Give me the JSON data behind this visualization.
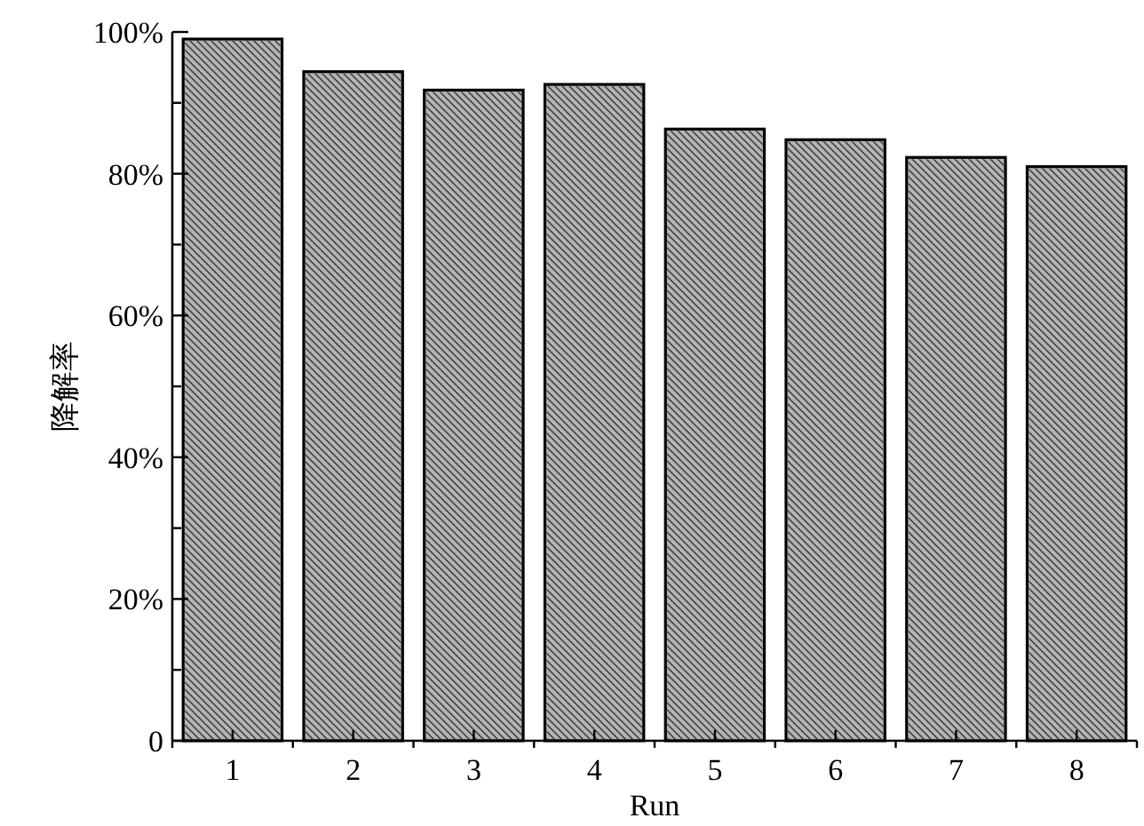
{
  "chart_data": {
    "type": "bar",
    "xlabel": "Run",
    "ylabel": "降解率",
    "categories": [
      "1",
      "2",
      "3",
      "4",
      "5",
      "6",
      "7",
      "8"
    ],
    "values": [
      99.0,
      94.4,
      91.8,
      92.6,
      86.3,
      84.8,
      82.3,
      81.0
    ],
    "color": "#b4b4b4",
    "ylim": [
      0,
      100
    ],
    "yticks": [
      {
        "value": 0,
        "label": "0"
      },
      {
        "value": 10,
        "label": null
      },
      {
        "value": 20,
        "label": "20%"
      },
      {
        "value": 30,
        "label": null
      },
      {
        "value": 40,
        "label": "40%"
      },
      {
        "value": 50,
        "label": null
      },
      {
        "value": 60,
        "label": "60%"
      },
      {
        "value": 70,
        "label": null
      },
      {
        "value": 80,
        "label": "80%"
      },
      {
        "value": 90,
        "label": null
      },
      {
        "value": 100,
        "label": "100%"
      }
    ],
    "grid": false
  }
}
